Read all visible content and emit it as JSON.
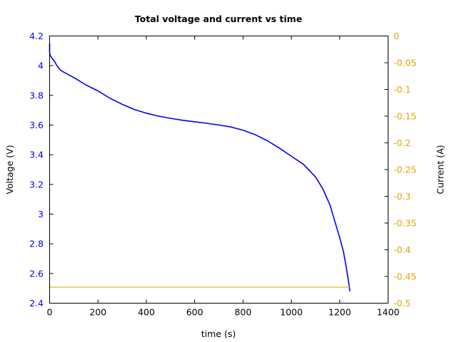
{
  "chart_data": {
    "type": "line",
    "title": "Total voltage and current vs time",
    "xlabel": "time (s)",
    "ylabel": "Voltage (V)",
    "y2label": "Current (A)",
    "xlim": [
      0,
      1400
    ],
    "ylim": [
      2.4,
      4.2
    ],
    "y2lim": [
      -0.5,
      0
    ],
    "xticks": [
      "0",
      "200",
      "400",
      "600",
      "800",
      "1000",
      "1200",
      "1400"
    ],
    "yticks": [
      "2.4",
      "2.6",
      "2.8",
      "3",
      "3.2",
      "3.4",
      "3.6",
      "3.8",
      "4",
      "4.2"
    ],
    "y2ticks": [
      "-0.5",
      "-0.45",
      "-0.4",
      "-0.35",
      "-0.3",
      "-0.25",
      "-0.2",
      "-0.15",
      "-0.1",
      "-0.05",
      "0"
    ],
    "grid": false,
    "series": [
      {
        "axis": "left",
        "color": "#0000ee",
        "x": [
          0,
          0,
          2,
          10,
          20,
          30,
          45,
          60,
          100,
          150,
          200,
          250,
          300,
          350,
          400,
          450,
          500,
          550,
          600,
          650,
          700,
          750,
          800,
          850,
          900,
          950,
          1000,
          1050,
          1100,
          1130,
          1160,
          1180,
          1200,
          1215,
          1225,
          1232,
          1238,
          1242
        ],
        "y": [
          4.15,
          4.09,
          4.07,
          4.05,
          4.03,
          4.0,
          3.97,
          3.955,
          3.92,
          3.87,
          3.83,
          3.78,
          3.74,
          3.705,
          3.68,
          3.66,
          3.645,
          3.632,
          3.622,
          3.612,
          3.6,
          3.587,
          3.565,
          3.535,
          3.495,
          3.445,
          3.39,
          3.335,
          3.25,
          3.17,
          3.06,
          2.95,
          2.84,
          2.75,
          2.66,
          2.59,
          2.53,
          2.48
        ]
      },
      {
        "axis": "right",
        "color": "#e8a100",
        "x": [
          0,
          1242
        ],
        "y": [
          -0.47,
          -0.47
        ]
      }
    ]
  },
  "colors": {
    "voltage": "#0000ee",
    "current": "#e8a100",
    "axis": "#000000"
  }
}
